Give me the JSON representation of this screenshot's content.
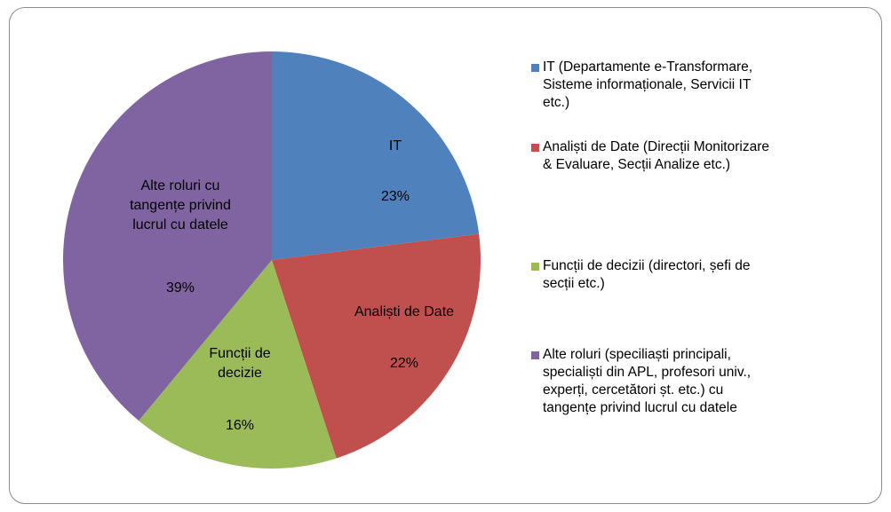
{
  "chart_data": {
    "type": "pie",
    "categories": [
      "IT (Departamente e-Transformare, Sisteme informaționale, Servicii IT etc.)",
      "Analiști de Date (Direcții Monitorizare & Evaluare, Secții Analize etc.)",
      "Funcții de decizii (directori, șefi de secții etc.)",
      "Alte roluri (speciliaști principali, specialiști din APL, profesori univ., experți, cercetători șt. etc.) cu tangențe privind lucrul cu datele"
    ],
    "slice_labels": [
      "IT",
      "Analiști de Date",
      "Funcții de decizie",
      "Alte roluri cu tangențe privind lucrul cu datele"
    ],
    "values": [
      23,
      22,
      16,
      39
    ],
    "value_labels": [
      "23%",
      "22%",
      "16%",
      "39%"
    ],
    "colors": [
      "#4f81bd",
      "#c0504d",
      "#9bbb59",
      "#8064a2"
    ]
  }
}
